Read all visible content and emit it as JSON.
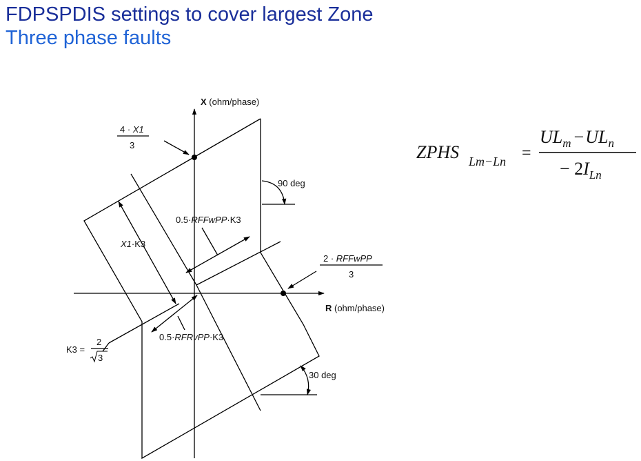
{
  "title_line1": "FDPSPDIS settings to cover largest Zone",
  "title_line2": "Three phase faults",
  "diagram": {
    "axis_x_label": "X",
    "axis_x_unit": " (ohm/phase)",
    "axis_r_label": "R",
    "axis_r_unit": " (ohm/phase)",
    "x1_num_coef": "4 · ",
    "x1_num_var": "X1",
    "x1_den": "3",
    "rffw_num_coef": "2 · ",
    "rffw_num_var": "RFFwPP",
    "rffw_den": "3",
    "angle_90": "90 deg",
    "angle_30": "30 deg",
    "half_rffw_coef": "0.5·",
    "half_rffw_var": "RFFwPP",
    "half_rffw_k": "·K3",
    "x1k3_var": "X1",
    "x1k3_k": "·K3",
    "half_rfrv_coef": "0.5·",
    "half_rfrv_var": "RFRvPP",
    "half_rfrv_k": "·K3",
    "k3_lhs": "K3 =",
    "k3_num": "2",
    "k3_den": "3"
  },
  "formula": {
    "lhs": "ZPHS",
    "lhs_sub": "Lm−Ln",
    "eq": "=",
    "num_a": "UL",
    "num_a_sub": "m",
    "minus": "−",
    "num_b": "UL",
    "num_b_sub": "n",
    "den_coef": "− 2",
    "den_var": "I",
    "den_sub": "Ln"
  }
}
